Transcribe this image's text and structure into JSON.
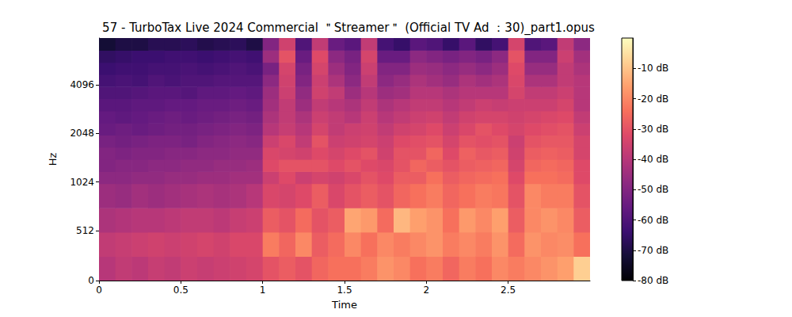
{
  "chart_data": {
    "type": "heatmap",
    "title": "57 - TurboTax Live 2024 Commercial ＂Streamer＂ (Official TV Ad ：30)_part1.opus",
    "x_label": "Time",
    "y_label": "Hz",
    "log": "y",
    "color": "magma",
    "xlim": [
      0,
      3
    ],
    "xticks": [
      0,
      0.5,
      1,
      1.5,
      2,
      2.5
    ],
    "ylim": [
      0,
      8000
    ],
    "yticks": [
      0,
      512,
      1024,
      2048,
      4096
    ],
    "x_edges": [
      0,
      0.1,
      0.2,
      0.3,
      0.4,
      0.5,
      0.6,
      0.7,
      0.8,
      0.9,
      1.0,
      1.1,
      1.2,
      1.3,
      1.4,
      1.5,
      1.6,
      1.7,
      1.8,
      1.9,
      2.0,
      2.1,
      2.2,
      2.3,
      2.4,
      2.5,
      2.6,
      2.7,
      2.8,
      2.9,
      3.0
    ],
    "y_edges": [
      0,
      250,
      500,
      750,
      1000,
      1189,
      1414,
      1682,
      2000,
      2378,
      2828,
      3364,
      4000,
      4757,
      5657,
      6727,
      8000
    ],
    "values": [
      [
        -40,
        -38,
        -42,
        -45,
        -48,
        -50,
        -50,
        -52,
        -55,
        -56,
        -58,
        -60,
        -62,
        -64,
        -66,
        -72
      ],
      [
        -38,
        -37,
        -41,
        -46,
        -48,
        -49,
        -51,
        -53,
        -54,
        -57,
        -58,
        -60,
        -61,
        -63,
        -65,
        -70
      ],
      [
        -39,
        -36,
        -40,
        -44,
        -47,
        -49,
        -50,
        -52,
        -55,
        -56,
        -57,
        -59,
        -62,
        -63,
        -64,
        -70
      ],
      [
        -37,
        -35,
        -40,
        -45,
        -47,
        -48,
        -50,
        -51,
        -54,
        -55,
        -57,
        -58,
        -60,
        -62,
        -64,
        -68
      ],
      [
        -38,
        -36,
        -39,
        -44,
        -46,
        -48,
        -49,
        -51,
        -53,
        -54,
        -56,
        -58,
        -61,
        -62,
        -63,
        -68
      ],
      [
        -36,
        -35,
        -38,
        -43,
        -46,
        -47,
        -49,
        -52,
        -53,
        -55,
        -56,
        -59,
        -60,
        -61,
        -63,
        -67
      ],
      [
        -37,
        -34,
        -38,
        -42,
        -45,
        -47,
        -48,
        -50,
        -52,
        -54,
        -55,
        -57,
        -60,
        -62,
        -64,
        -69
      ],
      [
        -36,
        -35,
        -39,
        -43,
        -45,
        -46,
        -48,
        -49,
        -51,
        -53,
        -55,
        -57,
        -59,
        -61,
        -63,
        -68
      ],
      [
        -35,
        -33,
        -37,
        -42,
        -44,
        -46,
        -47,
        -48,
        -50,
        -52,
        -54,
        -56,
        -59,
        -60,
        -62,
        -67
      ],
      [
        -34,
        -33,
        -36,
        -40,
        -44,
        -45,
        -47,
        -49,
        -51,
        -53,
        -55,
        -57,
        -59,
        -61,
        -63,
        -70
      ],
      [
        -30,
        -22,
        -28,
        -33,
        -36,
        -32,
        -33,
        -36,
        -40,
        -42,
        -44,
        -45,
        -48,
        -52,
        -45,
        -50
      ],
      [
        -28,
        -26,
        -30,
        -34,
        -32,
        -30,
        -34,
        -33,
        -37,
        -38,
        -38,
        -36,
        -35,
        -34,
        -30,
        -35
      ],
      [
        -30,
        -20,
        -25,
        -32,
        -36,
        -30,
        -35,
        -38,
        -40,
        -42,
        -45,
        -47,
        -50,
        -52,
        -55,
        -60
      ],
      [
        -26,
        -28,
        -30,
        -28,
        -34,
        -30,
        -32,
        -30,
        -34,
        -36,
        -38,
        -35,
        -36,
        -34,
        -32,
        -38
      ],
      [
        -24,
        -25,
        -28,
        -33,
        -35,
        -32,
        -34,
        -36,
        -38,
        -38,
        -40,
        -38,
        -42,
        -45,
        -48,
        -55
      ],
      [
        -24,
        -20,
        -15,
        -30,
        -33,
        -30,
        -32,
        -35,
        -36,
        -40,
        -42,
        -45,
        -48,
        -50,
        -52,
        -58
      ],
      [
        -22,
        -24,
        -17,
        -28,
        -30,
        -32,
        -30,
        -34,
        -35,
        -36,
        -38,
        -40,
        -38,
        -36,
        -34,
        -38
      ],
      [
        -18,
        -20,
        -25,
        -30,
        -32,
        -33,
        -35,
        -36,
        -38,
        -40,
        -42,
        -45,
        -48,
        -50,
        -55,
        -62
      ],
      [
        -20,
        -22,
        -12,
        -26,
        -28,
        -30,
        -30,
        -32,
        -35,
        -38,
        -40,
        -44,
        -46,
        -50,
        -55,
        -65
      ],
      [
        -24,
        -20,
        -16,
        -24,
        -28,
        -26,
        -30,
        -31,
        -34,
        -36,
        -38,
        -40,
        -42,
        -45,
        -48,
        -58
      ],
      [
        -22,
        -18,
        -18,
        -22,
        -24,
        -28,
        -26,
        -30,
        -32,
        -35,
        -38,
        -40,
        -44,
        -46,
        -50,
        -60
      ],
      [
        -26,
        -22,
        -24,
        -26,
        -28,
        -30,
        -32,
        -34,
        -36,
        -38,
        -40,
        -42,
        -46,
        -48,
        -52,
        -65
      ],
      [
        -22,
        -20,
        -17,
        -24,
        -26,
        -28,
        -27,
        -30,
        -33,
        -35,
        -38,
        -40,
        -42,
        -46,
        -50,
        -58
      ],
      [
        -24,
        -22,
        -20,
        -22,
        -25,
        -27,
        -29,
        -31,
        -30,
        -34,
        -36,
        -40,
        -44,
        -48,
        -52,
        -66
      ],
      [
        -20,
        -18,
        -16,
        -23,
        -24,
        -26,
        -28,
        -30,
        -32,
        -34,
        -37,
        -40,
        -42,
        -45,
        -48,
        -62
      ],
      [
        -22,
        -25,
        -28,
        -30,
        -32,
        -34,
        -35,
        -36,
        -34,
        -35,
        -36,
        -34,
        -33,
        -32,
        -30,
        -34
      ],
      [
        -20,
        -18,
        -20,
        -20,
        -24,
        -26,
        -28,
        -30,
        -32,
        -34,
        -36,
        -38,
        -42,
        -46,
        -50,
        -60
      ],
      [
        -18,
        -20,
        -18,
        -22,
        -24,
        -25,
        -27,
        -29,
        -31,
        -33,
        -36,
        -38,
        -42,
        -46,
        -50,
        -58
      ],
      [
        -16,
        -19,
        -20,
        -22,
        -25,
        -26,
        -28,
        -29,
        -30,
        -32,
        -34,
        -36,
        -38,
        -38,
        -36,
        -38
      ],
      [
        -8,
        -24,
        -28,
        -30,
        -32,
        -32,
        -34,
        -34,
        -36,
        -38,
        -40,
        -40,
        -40,
        -42,
        -44,
        -48
      ]
    ],
    "colorbar": {
      "range": [
        -80,
        0
      ],
      "ticks": [
        {
          "value": -10,
          "label": "-10 dB"
        },
        {
          "value": -20,
          "label": "-20 dB"
        },
        {
          "value": -30,
          "label": "-30 dB"
        },
        {
          "value": -40,
          "label": "-40 dB"
        },
        {
          "value": -50,
          "label": "-50 dB"
        },
        {
          "value": -60,
          "label": "-60 dB"
        },
        {
          "value": -70,
          "label": "-70 dB"
        },
        {
          "value": -80,
          "label": "-80 dB"
        }
      ]
    }
  }
}
